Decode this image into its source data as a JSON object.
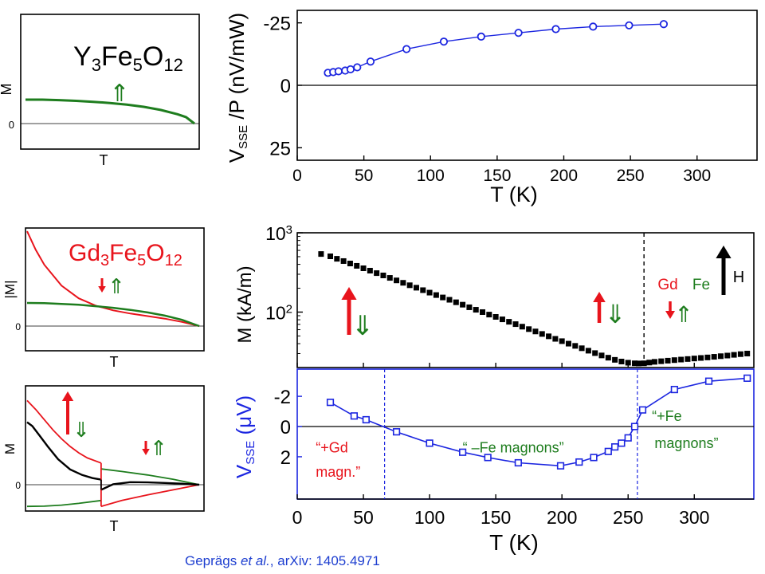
{
  "citation": {
    "authors": "Geprägs",
    "etal": "et al.",
    "sep": ", ",
    "ref": "arXiv: 1405.4971"
  },
  "colors": {
    "green": "#1e7d1e",
    "red": "#e8141c",
    "blue": "#1c26e0",
    "black": "#000000"
  },
  "chart_data": [
    {
      "id": "yig-sketch",
      "type": "line",
      "formula": {
        "base": "Y",
        "s1": "3",
        "e1": "Fe",
        "s2": "5",
        "e2": "O",
        "s3": "12"
      },
      "ylabel": "M",
      "xlabel": "T",
      "zero_label": "0",
      "arrow_label": "⇑",
      "series": [
        {
          "color": "#1e7d1e",
          "x": [
            0,
            0.1,
            0.2,
            0.3,
            0.4,
            0.5,
            0.6,
            0.7,
            0.8,
            0.9,
            0.95,
            1.0
          ],
          "y": [
            1.0,
            1.0,
            0.98,
            0.95,
            0.91,
            0.86,
            0.79,
            0.7,
            0.57,
            0.39,
            0.27,
            0.0
          ]
        }
      ]
    },
    {
      "id": "gig-abs-sketch",
      "type": "line",
      "formula": {
        "base": "Gd",
        "s1": "3",
        "e1": "Fe",
        "s2": "5",
        "e2": "O",
        "s3": "12"
      },
      "ylabel": "|M|",
      "xlabel": "T",
      "zero_label": "0",
      "arrows": {
        "red": "↓",
        "green": "⇑"
      },
      "series": [
        {
          "color": "#e8141c",
          "x": [
            0,
            0.05,
            0.1,
            0.2,
            0.3,
            0.4,
            0.5,
            0.6,
            0.7,
            0.8,
            0.9,
            1.0
          ],
          "y": [
            4.1,
            3.3,
            2.65,
            1.75,
            1.2,
            0.88,
            0.68,
            0.54,
            0.43,
            0.32,
            0.18,
            0.0
          ]
        },
        {
          "color": "#1e7d1e",
          "x": [
            0,
            0.1,
            0.2,
            0.3,
            0.4,
            0.5,
            0.6,
            0.7,
            0.8,
            0.9,
            1.0
          ],
          "y": [
            1.0,
            0.99,
            0.96,
            0.92,
            0.86,
            0.79,
            0.7,
            0.59,
            0.45,
            0.27,
            0.0
          ]
        }
      ]
    },
    {
      "id": "gig-signed-sketch",
      "type": "line",
      "ylabel": "M",
      "xlabel": "T",
      "zero_label": "0",
      "arrows_left": {
        "red": "↑",
        "green": "⇓"
      },
      "arrows_right": {
        "red": "↓",
        "green": "⇑"
      },
      "compensation_x": 0.43,
      "series": [
        {
          "color": "#e8141c",
          "x": [
            0,
            0.05,
            0.1,
            0.15,
            0.2,
            0.25,
            0.3,
            0.35,
            0.43
          ],
          "y": [
            3.3,
            2.95,
            2.55,
            2.15,
            1.8,
            1.5,
            1.25,
            1.05,
            0.85
          ]
        },
        {
          "color": "#e8141c",
          "x": [
            0.43,
            0.55,
            0.7,
            0.85,
            1.0
          ],
          "y": [
            -0.85,
            -0.62,
            -0.4,
            -0.2,
            0.0
          ]
        },
        {
          "color": "#1e7d1e",
          "x": [
            0,
            0.1,
            0.2,
            0.3,
            0.43
          ],
          "y": [
            -0.85,
            -0.84,
            -0.8,
            -0.73,
            -0.62
          ]
        },
        {
          "color": "#1e7d1e",
          "x": [
            0.43,
            0.55,
            0.7,
            0.85,
            1.0
          ],
          "y": [
            0.62,
            0.52,
            0.38,
            0.21,
            0.0
          ]
        },
        {
          "color": "#000000",
          "x": [
            0,
            0.03,
            0.07,
            0.12,
            0.18,
            0.25,
            0.32,
            0.38,
            0.43
          ],
          "y": [
            2.45,
            2.3,
            1.95,
            1.5,
            1.0,
            0.6,
            0.38,
            0.26,
            0.2
          ]
        },
        {
          "color": "#000000",
          "x": [
            0.43,
            0.5,
            0.6,
            0.7,
            0.8,
            0.9,
            1.0
          ],
          "y": [
            -0.2,
            0.02,
            0.1,
            0.09,
            0.07,
            0.04,
            0.0
          ]
        }
      ]
    },
    {
      "id": "yig-sse",
      "type": "scatter",
      "ylabel": "/P (nV/mW)",
      "ylabel_main": "V",
      "ylabel_sub": "SSE",
      "xlabel": "T (K)",
      "xlim": [
        0,
        345
      ],
      "ylim": [
        -30,
        30
      ],
      "y_inverted": true,
      "xticks": [
        0,
        50,
        100,
        150,
        200,
        250,
        300
      ],
      "yticks": [
        -25,
        0,
        25
      ],
      "ytick_labels": [
        "-25",
        "0",
        "25"
      ],
      "series": [
        {
          "color": "#1c26e0",
          "marker": "circle",
          "x": [
            23,
            27,
            31,
            36,
            40,
            45,
            55,
            82,
            110,
            138,
            166,
            194,
            222,
            249,
            275
          ],
          "y": [
            -5,
            -5.3,
            -5.6,
            -5.9,
            -6.4,
            -7.2,
            -9.5,
            -14.5,
            -17.5,
            -19.5,
            -21,
            -22.5,
            -23.5,
            -24,
            -24.5
          ]
        }
      ]
    },
    {
      "id": "gig-magnetization",
      "type": "scatter",
      "ylabel": "M (kA/m)",
      "xlim": [
        0,
        345
      ],
      "ylim": [
        20,
        1000
      ],
      "log_y": true,
      "ytick_labels": [
        {
          "base": "10",
          "exp": "3",
          "value": 1000
        },
        {
          "base": "10",
          "exp": "2",
          "value": 100
        }
      ],
      "compensation_T": 262,
      "field_label": "H",
      "gd_label": "Gd",
      "fe_label": "Fe",
      "left_arrows": {
        "red": "↑",
        "green": "⇓"
      },
      "mid_arrows": {
        "red": "↑",
        "green": "⇓"
      },
      "right_arrows": {
        "red": "↓",
        "green": "⇑"
      },
      "series": [
        {
          "color": "#000000",
          "marker": "square",
          "x": [
            18,
            25,
            30,
            35,
            40,
            45,
            50,
            55,
            60,
            65,
            70,
            75,
            80,
            85,
            90,
            95,
            100,
            105,
            110,
            115,
            120,
            125,
            130,
            135,
            140,
            145,
            150,
            155,
            160,
            165,
            170,
            175,
            180,
            185,
            190,
            195,
            200,
            205,
            210,
            215,
            220,
            225,
            230,
            235,
            240,
            245,
            250,
            255,
            258,
            262,
            266,
            270,
            275,
            280,
            285,
            290,
            295,
            300,
            305,
            310,
            315,
            320,
            325,
            330,
            335,
            340
          ],
          "y": [
            540,
            505,
            470,
            440,
            410,
            383,
            357,
            333,
            310,
            290,
            270,
            251,
            234,
            218,
            203,
            189,
            176,
            164,
            153,
            143,
            133,
            124,
            115,
            107,
            100,
            93,
            87,
            81,
            75.5,
            70.5,
            65.5,
            61,
            57,
            53,
            49.5,
            46,
            43,
            40,
            37.5,
            35,
            32.6,
            30.4,
            28.4,
            26.6,
            25,
            23.8,
            23,
            22.6,
            22.5,
            22.6,
            23.1,
            23.6,
            24,
            24.4,
            24.8,
            25.2,
            25.6,
            26,
            26.4,
            26.8,
            27.3,
            27.8,
            28.3,
            28.9,
            29.5,
            30
          ]
        }
      ]
    },
    {
      "id": "gig-sse",
      "type": "line",
      "ylabel": "(μV)",
      "ylabel_main": "V",
      "ylabel_sub": "SSE",
      "xlabel": "T (K)",
      "xlim": [
        0,
        345
      ],
      "ylim": [
        -3.8,
        4.8
      ],
      "y_inverted": true,
      "xticks": [
        0,
        50,
        100,
        150,
        200,
        250,
        300
      ],
      "yticks": [
        -2,
        0,
        2
      ],
      "ytick_labels": [
        "-2",
        "0",
        "2"
      ],
      "sign_change_T": [
        66,
        257
      ],
      "annotations": [
        {
          "text": "“+Gd",
          "x": 14,
          "y": 1.3,
          "color": "#e8141c"
        },
        {
          "text": "magn.”",
          "x": 14,
          "y": 2.9,
          "color": "#e8141c"
        },
        {
          "text": "“ –Fe magnons”",
          "x": 125,
          "y": 1.3,
          "color": "#1e7d1e"
        },
        {
          "text": "“+Fe",
          "x": 268,
          "y": -0.8,
          "color": "#1e7d1e"
        },
        {
          "text": "magnons”",
          "x": 270,
          "y": 1.0,
          "color": "#1e7d1e"
        }
      ],
      "series": [
        {
          "color": "#1c26e0",
          "marker": "square",
          "x": [
            25,
            43,
            52,
            75,
            100,
            125,
            144,
            167,
            199,
            213,
            224,
            235,
            240,
            245,
            250,
            255,
            261,
            285,
            311,
            340
          ],
          "y": [
            -1.6,
            -0.7,
            -0.45,
            0.35,
            1.1,
            1.7,
            2.05,
            2.4,
            2.6,
            2.35,
            2.05,
            1.65,
            1.35,
            1.1,
            0.75,
            0.0,
            -1.1,
            -2.45,
            -3.0,
            -3.2
          ]
        }
      ]
    }
  ]
}
